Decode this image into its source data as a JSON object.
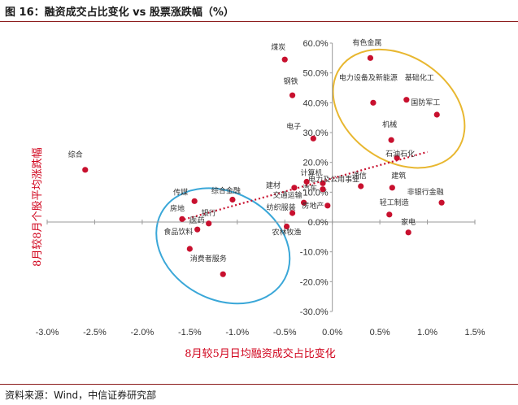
{
  "header": {
    "title": "图 16：融资成交占比变化 vs 股票涨跌幅（%）"
  },
  "footer": {
    "source": "资料来源：Wind，中信证券研究部"
  },
  "colors": {
    "point": "#c8102e",
    "trendline": "#c8102e",
    "axis_title": "#d0021b",
    "ellipse_top": "#e8b730",
    "ellipse_bottom": "#3aa7d8",
    "rule": "#8c1c1c"
  },
  "chart_data": {
    "type": "scatter",
    "title": "融资成交占比变化 vs 股票涨跌幅（%）",
    "xlabel": "8月较5月日均融资成交占比变化",
    "ylabel": "8月较8月个股平均涨跌幅",
    "xlim": [
      -3.0,
      1.5
    ],
    "ylim": [
      -30,
      60
    ],
    "x_ticks": [
      "-3.0%",
      "-2.5%",
      "-2.0%",
      "-1.5%",
      "-1.0%",
      "-0.5%",
      "0.0%",
      "0.5%",
      "1.0%",
      "1.5%"
    ],
    "y_ticks": [
      "-30.0%",
      "-20.0%",
      "-10.0%",
      "0.0%",
      "10.0%",
      "20.0%",
      "30.0%",
      "40.0%",
      "50.0%",
      "60.0%"
    ],
    "grid": false,
    "trendline": {
      "style": "dotted",
      "from": [
        -1.6,
        0.5
      ],
      "to": [
        1.0,
        23.5
      ]
    },
    "points": [
      {
        "name": "综合",
        "x": -2.6,
        "y": 17.5
      },
      {
        "name": "煤炭",
        "x": -0.5,
        "y": 54.5
      },
      {
        "name": "钢铁",
        "x": -0.42,
        "y": 42.5
      },
      {
        "name": "有色金属",
        "x": 0.4,
        "y": 55.0
      },
      {
        "name": "基础化工",
        "x": 0.78,
        "y": 41.0
      },
      {
        "name": "电力设备及新能源",
        "x": 0.43,
        "y": 40.0
      },
      {
        "name": "国防军工",
        "x": 1.1,
        "y": 36.0
      },
      {
        "name": "电子",
        "x": -0.2,
        "y": 28.0
      },
      {
        "name": "机械",
        "x": 0.62,
        "y": 27.5
      },
      {
        "name": "石油石化",
        "x": 0.68,
        "y": 21.5
      },
      {
        "name": "计算机",
        "x": -0.1,
        "y": 13.0
      },
      {
        "name": "建材",
        "x": -0.4,
        "y": 11.5
      },
      {
        "name": "电力及公用事业",
        "x": -0.27,
        "y": 13.5
      },
      {
        "name": "汽车",
        "x": -0.1,
        "y": 11.0
      },
      {
        "name": "通信",
        "x": 0.3,
        "y": 12.0
      },
      {
        "name": "建筑",
        "x": 0.63,
        "y": 11.5
      },
      {
        "name": "传媒",
        "x": -1.45,
        "y": 7.0
      },
      {
        "name": "综合金融",
        "x": -1.05,
        "y": 7.5
      },
      {
        "name": "交通运输",
        "x": -0.3,
        "y": 6.5
      },
      {
        "name": "房地产",
        "x": -0.05,
        "y": 5.5
      },
      {
        "name": "非银行金融",
        "x": 1.15,
        "y": 6.5
      },
      {
        "name": "纺织服装",
        "x": -0.42,
        "y": 3.0
      },
      {
        "name": "轻工制造",
        "x": 0.6,
        "y": 2.5
      },
      {
        "name": "房地",
        "x": -1.58,
        "y": 1.0
      },
      {
        "name": "银行",
        "x": -1.3,
        "y": -0.5
      },
      {
        "name": "农林牧渔",
        "x": -0.48,
        "y": -1.5
      },
      {
        "name": "医药",
        "x": -1.42,
        "y": -2.5
      },
      {
        "name": "家电",
        "x": 0.8,
        "y": -3.5
      },
      {
        "name": "食品饮料",
        "x": -1.5,
        "y": -9.0
      },
      {
        "name": "消费者服务",
        "x": -1.15,
        "y": -17.5
      }
    ]
  }
}
